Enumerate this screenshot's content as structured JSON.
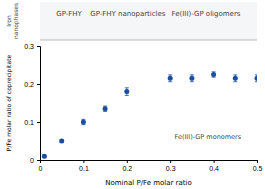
{
  "chart_data": {
    "type": "scatter",
    "x": [
      0.01,
      0.05,
      0.1,
      0.15,
      0.2,
      0.3,
      0.35,
      0.4,
      0.45,
      0.5
    ],
    "values": [
      0.01,
      0.05,
      0.1,
      0.135,
      0.18,
      0.215,
      0.215,
      0.225,
      0.215,
      0.215
    ],
    "errors": [
      0.004,
      0.004,
      0.007,
      0.007,
      0.01,
      0.009,
      0.009,
      0.007,
      0.009,
      0.009
    ],
    "xlabel": "Nominal P/Fe molar ratio",
    "ylabel": "P/Fe molar ratio of coprecipitate",
    "xlim": [
      0.0,
      0.5
    ],
    "ylim": [
      0.0,
      0.3
    ],
    "xticks": [
      0.0,
      0.1,
      0.2,
      0.3,
      0.4,
      0.5
    ],
    "yticks": [
      0.0,
      0.1,
      0.2,
      0.3
    ],
    "color": "#1a4fa0",
    "marker": "circle",
    "annotations": [
      "GP-FHY",
      "GP-FHY nanoparticles",
      "Fe(III)-GP oligomers",
      "Iron\nnanophases",
      "Fe(III)-GP monomers"
    ]
  }
}
